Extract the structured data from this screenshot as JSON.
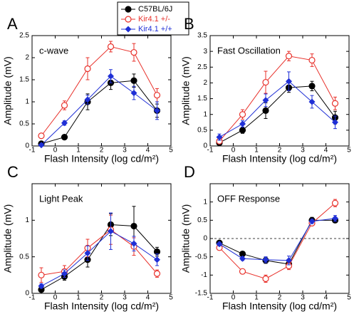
{
  "chart_data": [
    {
      "type": "line",
      "letter": "A",
      "title": "c-wave",
      "xlabel": "Flash Intensity (log cd/m²)",
      "ylabel": "Amplitude (mV)",
      "x": [
        -0.6,
        0.4,
        1.4,
        2.4,
        3.4,
        4.4
      ],
      "xlim": [
        -1,
        5
      ],
      "xticks": [
        -1,
        0,
        1,
        2,
        3,
        4,
        5
      ],
      "ylim": [
        0,
        2.5
      ],
      "yticks": [
        0,
        0.5,
        1,
        1.5,
        2,
        2.5
      ],
      "series": [
        {
          "name": "C57BL/6J",
          "color": "#000000",
          "marker": "circle",
          "values": [
            0.05,
            0.2,
            1.0,
            1.43,
            1.48,
            0.8
          ],
          "errors": [
            0.03,
            0.05,
            0.18,
            0.15,
            0.15,
            0.15
          ]
        },
        {
          "name": "Kir4.1 +/-",
          "color": "#e8302a",
          "marker": "open-circle",
          "values": [
            0.23,
            0.92,
            1.75,
            2.25,
            2.12,
            1.15
          ],
          "errors": [
            0.05,
            0.1,
            0.25,
            0.12,
            0.2,
            0.15
          ]
        },
        {
          "name": "Kir4.1 +/+",
          "color": "#1f2fd6",
          "marker": "diamond",
          "values": [
            0.02,
            0.52,
            1.05,
            1.58,
            1.2,
            0.8
          ],
          "errors": [
            0.03,
            0.05,
            0.1,
            0.15,
            0.15,
            0.2
          ]
        }
      ]
    },
    {
      "type": "line",
      "letter": "B",
      "title": "Fast Oscillation",
      "xlabel": "Flash Intensity (log cd/m²)",
      "ylabel": "Amplitude (mV)",
      "x": [
        -0.6,
        0.4,
        1.4,
        2.4,
        3.4,
        4.4
      ],
      "xlim": [
        -1,
        5
      ],
      "xticks": [
        -1,
        0,
        1,
        2,
        3,
        4,
        5
      ],
      "ylim": [
        0,
        3.5
      ],
      "yticks": [
        0,
        0.5,
        1,
        1.5,
        2,
        2.5,
        3,
        3.5
      ],
      "series": [
        {
          "color": "#000000",
          "marker": "circle",
          "values": [
            0.1,
            0.5,
            1.12,
            1.85,
            1.9,
            0.9
          ],
          "errors": [
            0.05,
            0.1,
            0.25,
            0.15,
            0.15,
            0.2
          ]
        },
        {
          "color": "#e8302a",
          "marker": "open-circle",
          "values": [
            0.15,
            1.0,
            2.02,
            2.85,
            2.72,
            1.35
          ],
          "errors": [
            0.05,
            0.15,
            0.35,
            0.15,
            0.2,
            0.2
          ]
        },
        {
          "color": "#1f2fd6",
          "marker": "diamond",
          "values": [
            0.28,
            0.7,
            1.45,
            2.05,
            1.4,
            0.75
          ],
          "errors": [
            0.1,
            0.1,
            0.2,
            0.3,
            0.2,
            0.2
          ]
        }
      ]
    },
    {
      "type": "line",
      "letter": "C",
      "title": "Light Peak",
      "xlabel": "Flash Intensity (log cd/m²)",
      "ylabel": "Amplitude (mV)",
      "x": [
        -0.6,
        0.4,
        1.4,
        2.4,
        3.4,
        4.4
      ],
      "xlim": [
        -1,
        5
      ],
      "xticks": [
        -1,
        0,
        1,
        2,
        3,
        4,
        5
      ],
      "ylim": [
        0,
        1.5
      ],
      "yticks": [
        0,
        0.5,
        1
      ],
      "series": [
        {
          "color": "#000000",
          "marker": "circle",
          "values": [
            0.05,
            0.23,
            0.46,
            0.94,
            0.92,
            0.57
          ],
          "errors": [
            0.02,
            0.05,
            0.1,
            0.15,
            0.27,
            0.06
          ]
        },
        {
          "color": "#e8302a",
          "marker": "open-circle",
          "values": [
            0.25,
            0.3,
            0.62,
            0.87,
            0.64,
            0.27
          ],
          "errors": [
            0.1,
            0.08,
            0.12,
            0.2,
            0.12,
            0.05
          ]
        },
        {
          "color": "#1f2fd6",
          "marker": "diamond",
          "values": [
            0.1,
            0.27,
            0.55,
            0.85,
            0.68,
            0.46
          ],
          "errors": [
            0.03,
            0.05,
            0.1,
            0.25,
            0.1,
            0.08
          ]
        }
      ]
    },
    {
      "type": "line",
      "letter": "D",
      "title": "OFF Response",
      "xlabel": "Flash Intensity (log cd/m²)",
      "ylabel": "Amplitude (mV)",
      "x": [
        -0.6,
        0.4,
        1.4,
        2.4,
        3.4,
        4.4
      ],
      "xlim": [
        -1,
        5
      ],
      "xticks": [
        -1,
        0,
        1,
        2,
        3,
        4,
        5
      ],
      "ylim": [
        -1.5,
        1.5
      ],
      "yticks": [
        -1.5,
        -1,
        -0.5,
        0,
        0.5,
        1
      ],
      "zero_line": true,
      "series": [
        {
          "color": "#000000",
          "marker": "circle",
          "values": [
            -0.12,
            -0.42,
            -0.6,
            -0.7,
            0.5,
            0.5
          ],
          "errors": [
            0.05,
            0.06,
            0.08,
            0.1,
            0.08,
            0.06
          ]
        },
        {
          "color": "#e8302a",
          "marker": "open-circle",
          "values": [
            -0.25,
            -0.9,
            -1.1,
            -0.75,
            0.42,
            0.97
          ],
          "errors": [
            0.06,
            0.06,
            0.1,
            0.1,
            0.06,
            0.1
          ]
        },
        {
          "color": "#1f2fd6",
          "marker": "diamond",
          "values": [
            -0.15,
            -0.55,
            -0.58,
            -0.6,
            0.47,
            0.55
          ],
          "errors": [
            0.05,
            0.05,
            0.08,
            0.12,
            0.06,
            0.08
          ]
        }
      ]
    }
  ]
}
